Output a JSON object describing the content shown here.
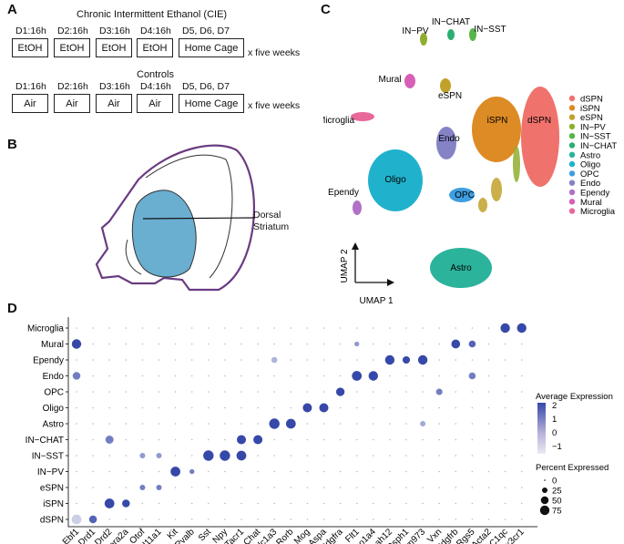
{
  "panels": {
    "a": "A",
    "b": "B",
    "c": "C",
    "d": "D"
  },
  "panel_a": {
    "cie_title": "Chronic Intermittent Ethanol (CIE)",
    "controls_title": "Controls",
    "repeat_label": "x five weeks",
    "cie_days": [
      {
        "day": "D1:16h",
        "treatment": "EtOH"
      },
      {
        "day": "D2:16h",
        "treatment": "EtOH"
      },
      {
        "day": "D3:16h",
        "treatment": "EtOH"
      },
      {
        "day": "D4:16h",
        "treatment": "EtOH"
      },
      {
        "day": "D5, D6, D7",
        "treatment": "Home Cage"
      }
    ],
    "control_days": [
      {
        "day": "D1:16h",
        "treatment": "Air"
      },
      {
        "day": "D2:16h",
        "treatment": "Air"
      },
      {
        "day": "D3:16h",
        "treatment": "Air"
      },
      {
        "day": "D4:16h",
        "treatment": "Air"
      },
      {
        "day": "D5, D6, D7",
        "treatment": "Home Cage"
      }
    ]
  },
  "panel_b": {
    "label_line1": "Dorsal",
    "label_line2": "Striatum",
    "fill": "#6aaed0"
  },
  "panel_c": {
    "xlabel": "UMAP 1",
    "ylabel": "UMAP 2",
    "clusters": [
      {
        "name": "dSPN",
        "color": "#f0726c"
      },
      {
        "name": "iSPN",
        "color": "#dd8b25"
      },
      {
        "name": "eSPN",
        "color": "#c1a12a"
      },
      {
        "name": "IN−PV",
        "color": "#8fae2f"
      },
      {
        "name": "IN−SST",
        "color": "#55b548"
      },
      {
        "name": "IN−CHAT",
        "color": "#2aae72"
      },
      {
        "name": "Astro",
        "color": "#2bb39c"
      },
      {
        "name": "Oligo",
        "color": "#20b2cc"
      },
      {
        "name": "OPC",
        "color": "#3f9ee0"
      },
      {
        "name": "Endo",
        "color": "#8583c6"
      },
      {
        "name": "Ependy",
        "color": "#b071c6"
      },
      {
        "name": "Mural",
        "color": "#d85fb8"
      },
      {
        "name": "Microglia",
        "color": "#e8689c"
      }
    ]
  },
  "chart_data": {
    "type": "dotplot",
    "title": "",
    "legend_expression_title": "Average Expression",
    "legend_expression_ticks": [
      "2",
      "1",
      "0",
      "−1"
    ],
    "legend_expression_range": [
      -1,
      2
    ],
    "legend_percent_title": "Percent Expressed",
    "legend_percent_ticks": [
      "0",
      "25",
      "50",
      "75"
    ],
    "legend_percent_values": [
      0,
      25,
      50,
      75
    ],
    "genes": [
      "Ebf1",
      "Drd1",
      "Drd2",
      "Adora2a",
      "Otof",
      "Col11a1",
      "Kit",
      "Pvalb",
      "Sst",
      "Npy",
      "Tacr1",
      "Chat",
      "Slc1a3",
      "Rorb",
      "Mog",
      "Aspa",
      "Pdgfra",
      "Flt1",
      "Slco1a4",
      "Dnah12",
      "Rsph1",
      "Gm973",
      "Vxn",
      "Pdgfrb",
      "Rgs5",
      "Acta2",
      "C1qc",
      "Cx3cr1"
    ],
    "cell_types": [
      "Microglia",
      "Mural",
      "Ependy",
      "Endo",
      "OPC",
      "Oligo",
      "Astro",
      "IN−CHAT",
      "IN−SST",
      "IN−PV",
      "eSPN",
      "iSPN",
      "dSPN"
    ],
    "strong_points": [
      {
        "cell": "Microglia",
        "gene": "C1qc",
        "pct": 75,
        "expr": 2
      },
      {
        "cell": "Microglia",
        "gene": "Cx3cr1",
        "pct": 75,
        "expr": 2
      },
      {
        "cell": "Mural",
        "gene": "Ebf1",
        "pct": 75,
        "expr": 2
      },
      {
        "cell": "Mural",
        "gene": "Pdgfrb",
        "pct": 65,
        "expr": 2
      },
      {
        "cell": "Mural",
        "gene": "Rgs5",
        "pct": 40,
        "expr": 1.5
      },
      {
        "cell": "Mural",
        "gene": "Flt1",
        "pct": 20,
        "expr": 0.5
      },
      {
        "cell": "Ependy",
        "gene": "Dnah12",
        "pct": 75,
        "expr": 2
      },
      {
        "cell": "Ependy",
        "gene": "Rsph1",
        "pct": 45,
        "expr": 2
      },
      {
        "cell": "Ependy",
        "gene": "Gm973",
        "pct": 75,
        "expr": 2
      },
      {
        "cell": "Ependy",
        "gene": "Slc1a3",
        "pct": 30,
        "expr": 0
      },
      {
        "cell": "Endo",
        "gene": "Flt1",
        "pct": 80,
        "expr": 2
      },
      {
        "cell": "Endo",
        "gene": "Slco1a4",
        "pct": 75,
        "expr": 2
      },
      {
        "cell": "Endo",
        "gene": "Ebf1",
        "pct": 50,
        "expr": 1
      },
      {
        "cell": "Endo",
        "gene": "Rgs5",
        "pct": 40,
        "expr": 1
      },
      {
        "cell": "OPC",
        "gene": "Pdgfra",
        "pct": 60,
        "expr": 2
      },
      {
        "cell": "OPC",
        "gene": "Vxn",
        "pct": 35,
        "expr": 1
      },
      {
        "cell": "Oligo",
        "gene": "Mog",
        "pct": 70,
        "expr": 2
      },
      {
        "cell": "Oligo",
        "gene": "Aspa",
        "pct": 70,
        "expr": 2
      },
      {
        "cell": "Astro",
        "gene": "Slc1a3",
        "pct": 90,
        "expr": 2
      },
      {
        "cell": "Astro",
        "gene": "Rorb",
        "pct": 80,
        "expr": 2
      },
      {
        "cell": "Astro",
        "gene": "Gm973",
        "pct": 25,
        "expr": 0.2
      },
      {
        "cell": "IN−CHAT",
        "gene": "Drd2",
        "pct": 55,
        "expr": 1
      },
      {
        "cell": "IN−CHAT",
        "gene": "Tacr1",
        "pct": 70,
        "expr": 2
      },
      {
        "cell": "IN−CHAT",
        "gene": "Chat",
        "pct": 70,
        "expr": 2
      },
      {
        "cell": "IN−SST",
        "gene": "Sst",
        "pct": 90,
        "expr": 2
      },
      {
        "cell": "IN−SST",
        "gene": "Npy",
        "pct": 90,
        "expr": 2
      },
      {
        "cell": "IN−SST",
        "gene": "Tacr1",
        "pct": 80,
        "expr": 2
      },
      {
        "cell": "IN−SST",
        "gene": "Otof",
        "pct": 25,
        "expr": 0.5
      },
      {
        "cell": "IN−SST",
        "gene": "Col11a1",
        "pct": 25,
        "expr": 0.5
      },
      {
        "cell": "IN−PV",
        "gene": "Kit",
        "pct": 80,
        "expr": 2
      },
      {
        "cell": "IN−PV",
        "gene": "Pvalb",
        "pct": 20,
        "expr": 1
      },
      {
        "cell": "eSPN",
        "gene": "Otof",
        "pct": 25,
        "expr": 1
      },
      {
        "cell": "eSPN",
        "gene": "Col11a1",
        "pct": 25,
        "expr": 1
      },
      {
        "cell": "iSPN",
        "gene": "Drd2",
        "pct": 80,
        "expr": 2
      },
      {
        "cell": "iSPN",
        "gene": "Adora2a",
        "pct": 50,
        "expr": 2
      },
      {
        "cell": "dSPN",
        "gene": "Ebf1",
        "pct": 80,
        "expr": -0.5
      },
      {
        "cell": "dSPN",
        "gene": "Drd1",
        "pct": 50,
        "expr": 1.5
      }
    ]
  }
}
